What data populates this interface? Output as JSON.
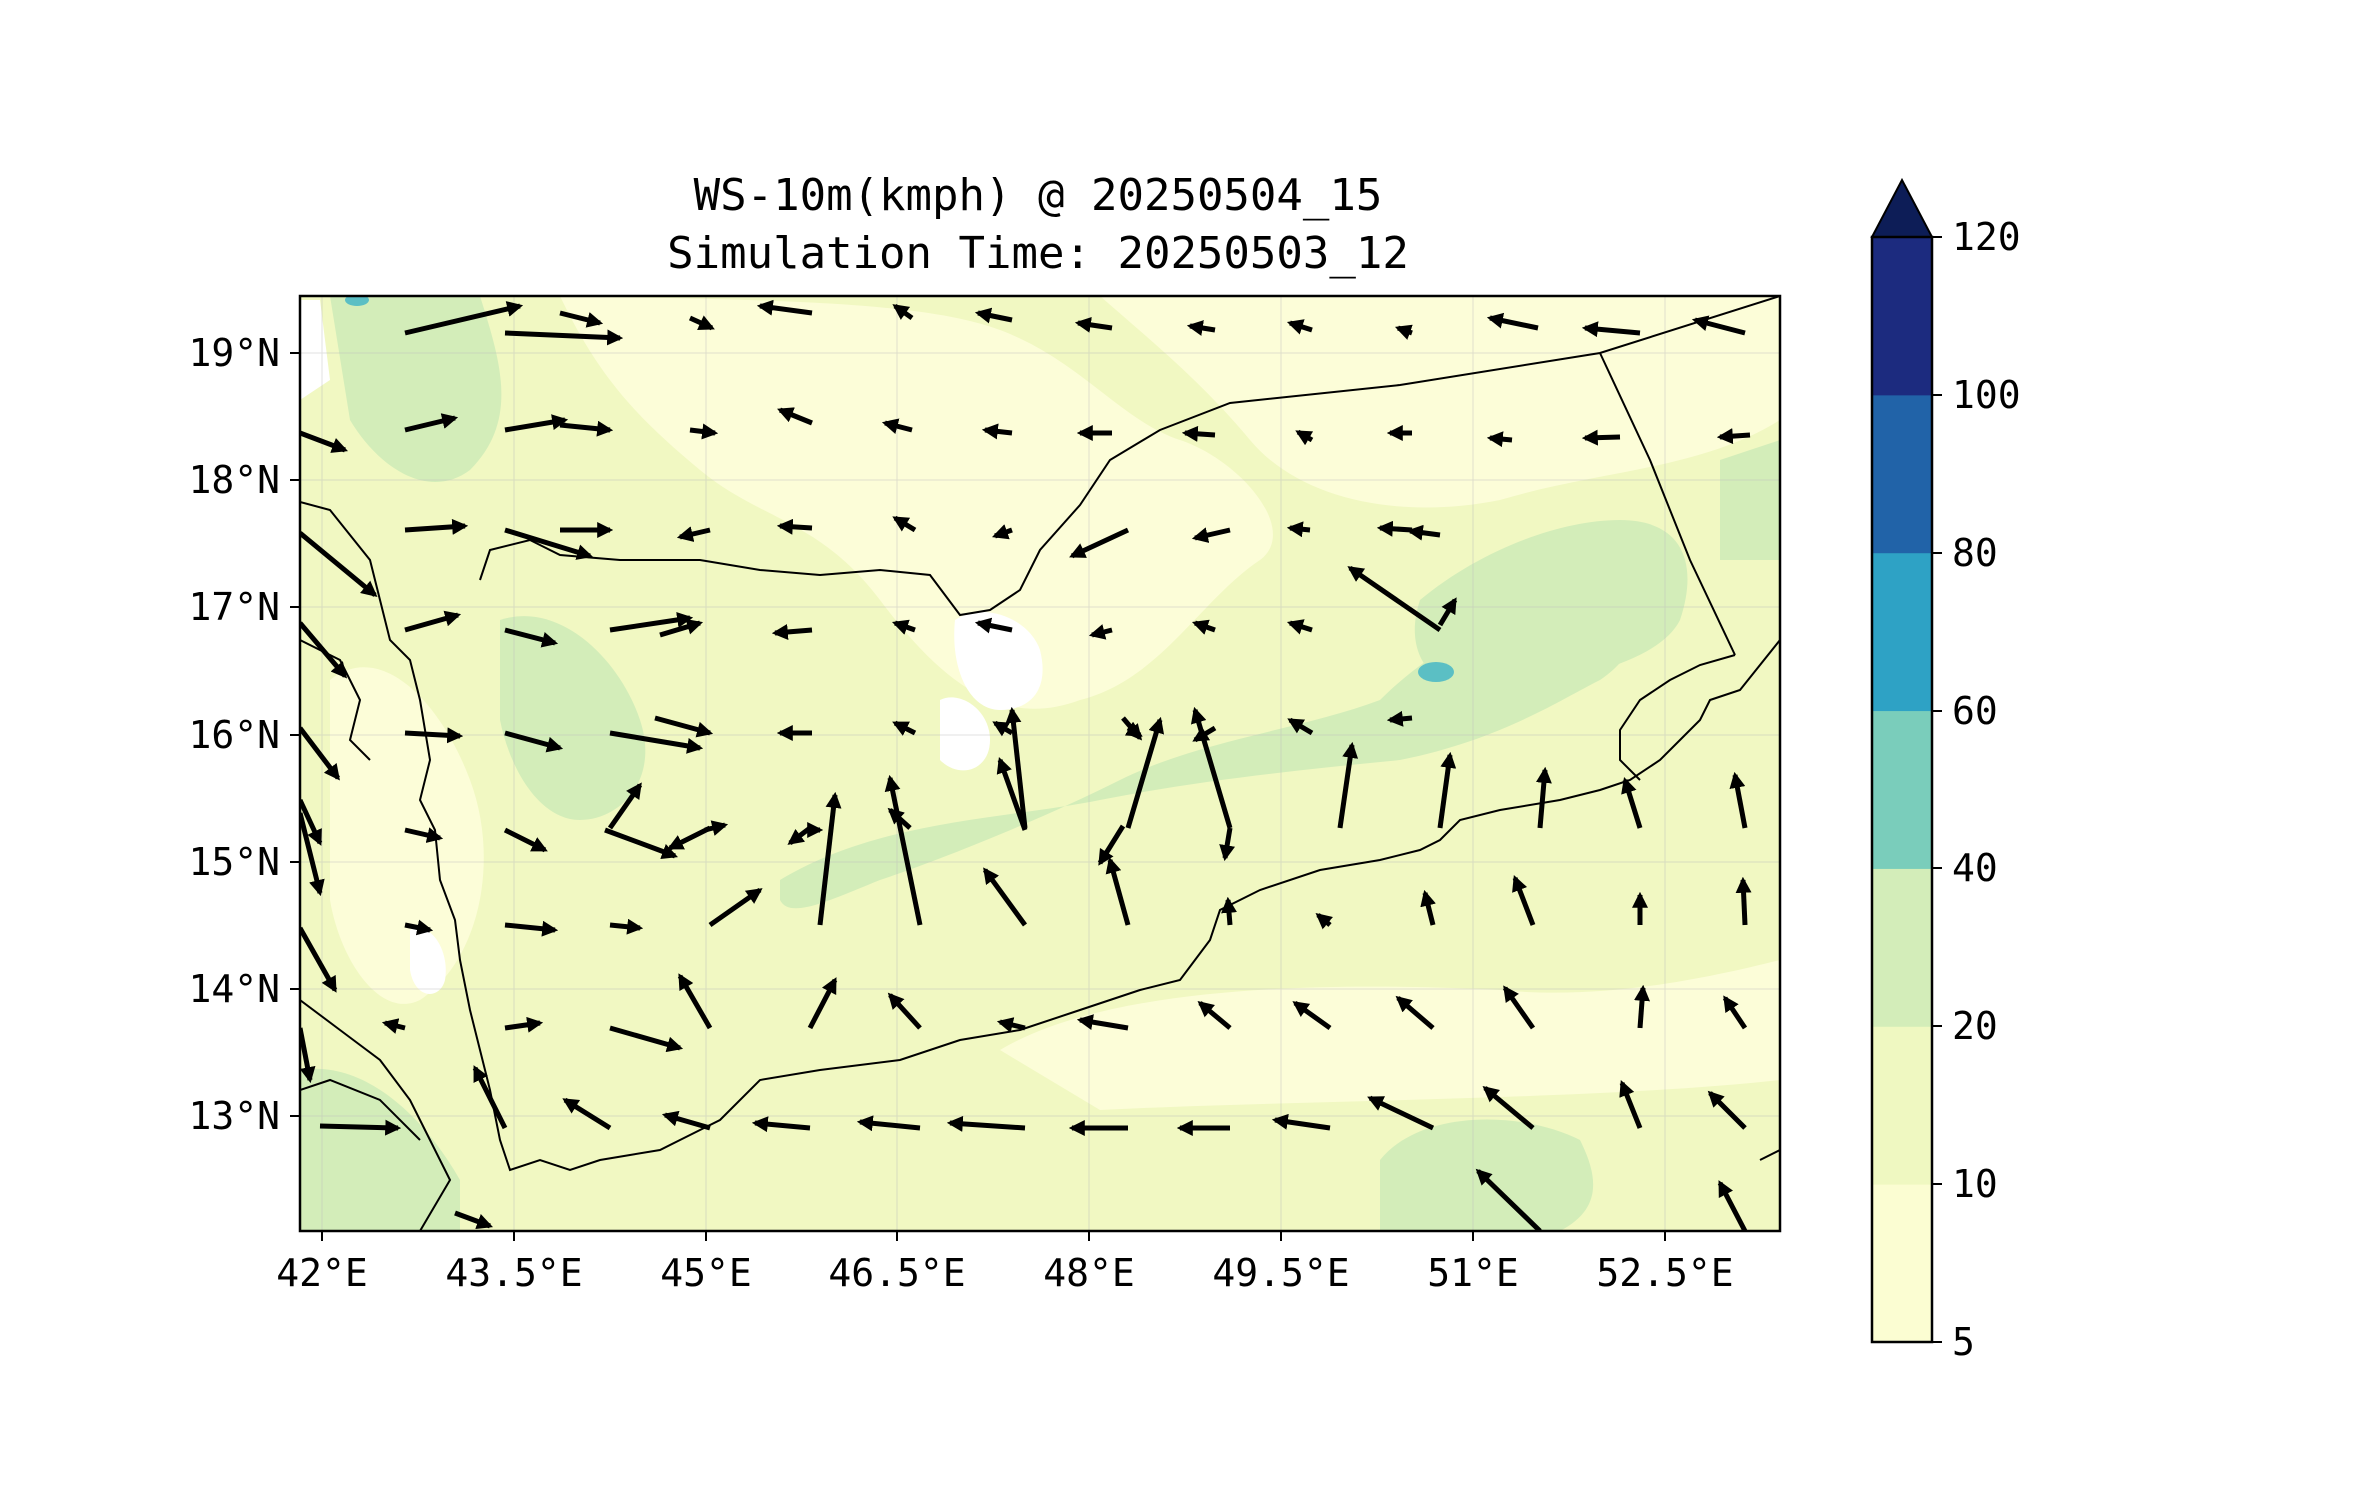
{
  "title": {
    "line1": "WS-10m(kmph) @ 20250504_15",
    "line2": "Simulation Time: 20250503_12"
  },
  "map": {
    "lon_range": [
      41.5,
      53.8
    ],
    "lat_range": [
      12.1,
      19.45
    ],
    "lon_ticks": [
      "42°E",
      "43.5°E",
      "45°E",
      "46.5°E",
      "48°E",
      "49.5°E",
      "51°E",
      "52.5°E"
    ],
    "lat_ticks": [
      "19°N",
      "18°N",
      "17°N",
      "16°N",
      "15°N",
      "14°N",
      "13°N"
    ],
    "grid": true,
    "fill_colors": {
      "background": "#f1f8c2",
      "low": "#fcfdd8",
      "mid": "#d3edb9",
      "white": "#ffffff",
      "teal": "#5bbfc4"
    }
  },
  "colorbar": {
    "levels": [
      "5",
      "10",
      "20",
      "40",
      "60",
      "80",
      "100",
      "120"
    ],
    "colors": [
      "#fbfdd2",
      "#eff8c1",
      "#d3edb9",
      "#7acdbb",
      "#2ea2c5",
      "#2163a8",
      "#1c2b7f"
    ],
    "extend_color": "#0d1d57"
  }
}
